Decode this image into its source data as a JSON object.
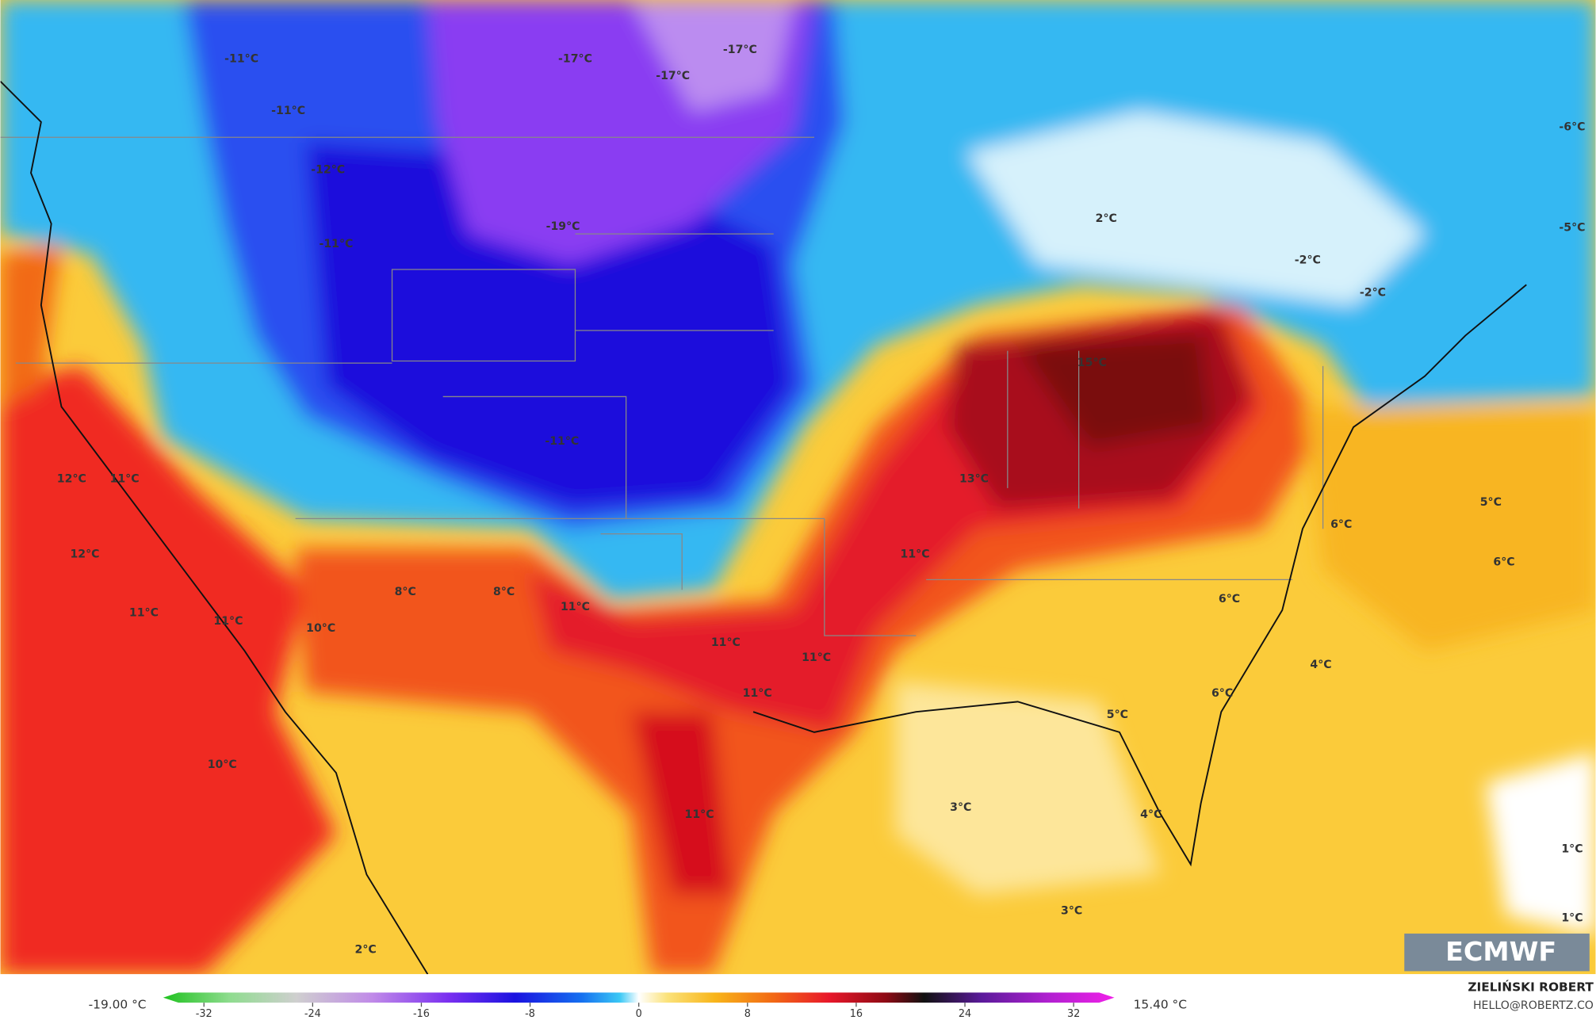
{
  "map": {
    "labels": [
      "-11°C",
      "-11°C",
      "-17°C",
      "-17°C",
      "-17°C",
      "-12°C",
      "-11°C",
      "-19°C",
      "-11°C",
      "2°C",
      "-2°C",
      "-2°C",
      "-6°C",
      "-5°C",
      "15°C",
      "13°C",
      "12°C",
      "11°C",
      "12°C",
      "11°C",
      "11°C",
      "8°C",
      "8°C",
      "10°C",
      "11°C",
      "11°C",
      "11°C",
      "11°C",
      "11°C",
      "5°C",
      "6°C",
      "6°C",
      "6°C",
      "4°C",
      "6°C",
      "5°C",
      "10°C",
      "3°C",
      "4°C",
      "11°C",
      "1°C",
      "1°C",
      "3°C",
      "2°C"
    ]
  },
  "colorbar": {
    "min_label": "-19.00 °C",
    "max_label": "15.40 °C",
    "lim": [
      -35,
      35
    ],
    "ticks": [
      -32,
      -24,
      -16,
      -8,
      0,
      8,
      16,
      24,
      32
    ]
  },
  "credit": {
    "name": "ZIELIŃSKI ROBERT",
    "email": "HELLO@ROBERTZ.CO"
  },
  "logo": "ECMWF"
}
